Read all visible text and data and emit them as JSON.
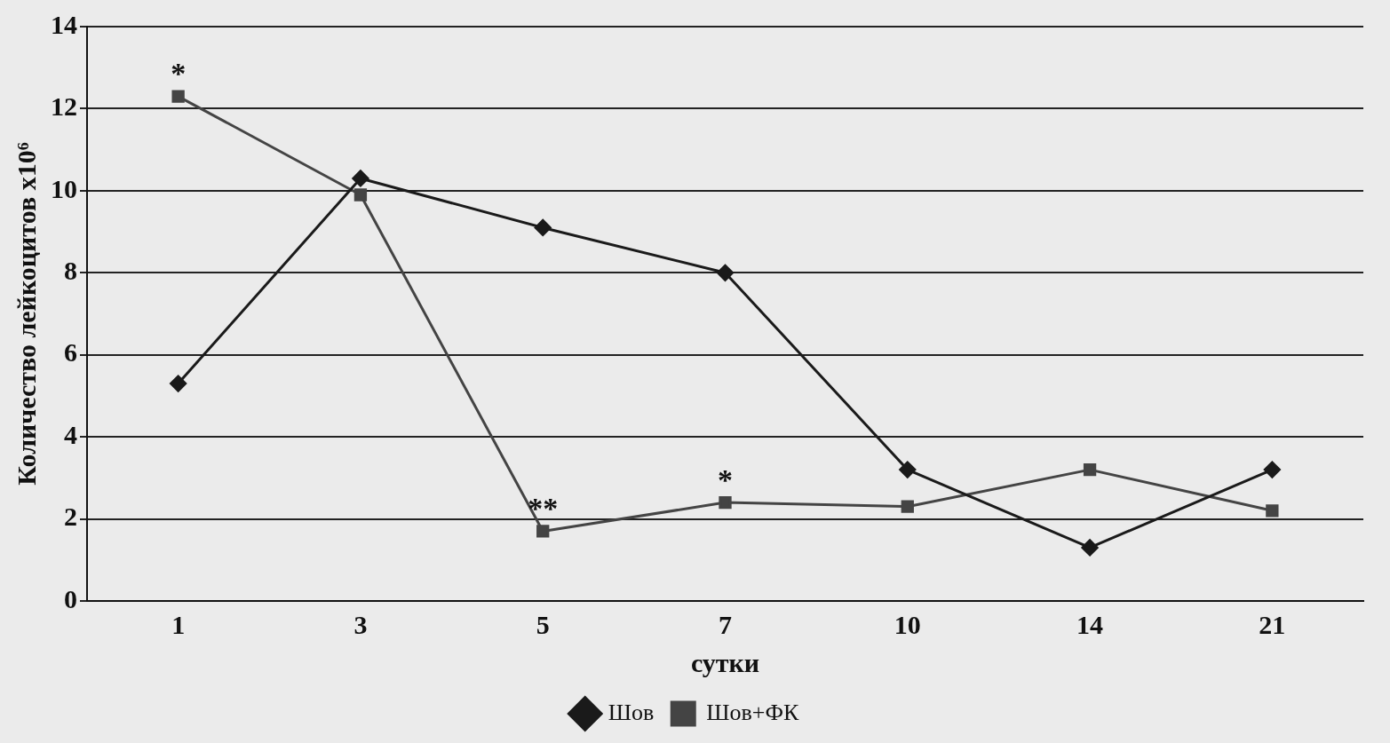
{
  "chart_data": {
    "type": "line",
    "xlabel": "сутки",
    "ylabel": "Количество лейкоцитов х10⁶",
    "categories": [
      "1",
      "3",
      "5",
      "7",
      "10",
      "14",
      "21"
    ],
    "series": [
      {
        "name": "Шов",
        "color": "#1a1a1a",
        "marker": "diamond",
        "values": [
          5.3,
          10.3,
          9.1,
          8.0,
          3.2,
          1.3,
          3.2
        ]
      },
      {
        "name": "Шов+ФК",
        "color": "#444444",
        "marker": "square",
        "values": [
          12.3,
          9.9,
          1.7,
          2.4,
          2.3,
          3.2,
          2.2
        ]
      }
    ],
    "ylim": [
      0,
      14
    ],
    "yticks": [
      0,
      2,
      4,
      6,
      8,
      10,
      12,
      14
    ],
    "grid": "y",
    "legend": "bottom",
    "line_style": "solid",
    "annotations": [
      {
        "text": "*",
        "x": "1",
        "y": 12.3
      },
      {
        "text": "**",
        "x": "5",
        "y": 1.7
      },
      {
        "text": "*",
        "x": "7",
        "y": 2.4
      }
    ]
  }
}
